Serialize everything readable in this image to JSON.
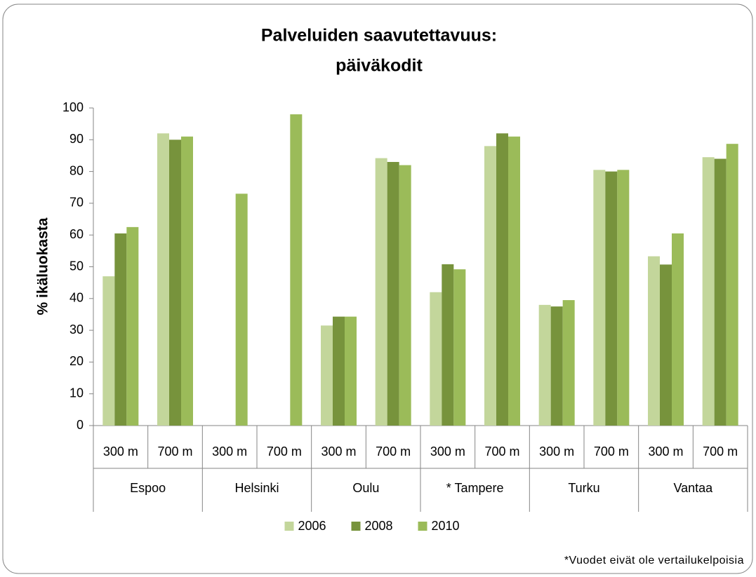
{
  "chart_data": {
    "type": "bar",
    "title": [
      "Palveluiden saavutettavuus:",
      "päiväkodit"
    ],
    "ylabel": "% ikäluokasta",
    "categories": [
      "300 m",
      "700 m",
      "300 m",
      "700 m",
      "300 m",
      "700 m",
      "300 m",
      "700 m",
      "300 m",
      "700 m",
      "300 m",
      "700 m"
    ],
    "groups": [
      "Espoo",
      "Helsinki",
      "Oulu",
      "* Tampere",
      "Turku",
      "Vantaa"
    ],
    "series": [
      {
        "name": "2006",
        "color": "#c3d69b",
        "values": [
          47,
          92,
          null,
          null,
          31.5,
          84.2,
          42,
          88,
          38,
          80.5,
          53.3,
          84.5
        ]
      },
      {
        "name": "2008",
        "color": "#77933c",
        "values": [
          60.5,
          90,
          null,
          null,
          34.3,
          83,
          50.8,
          92,
          37.5,
          80,
          50.7,
          84
        ]
      },
      {
        "name": "2010",
        "color": "#9bbb59",
        "values": [
          62.5,
          91,
          73,
          98,
          34.3,
          82,
          49.2,
          91,
          39.5,
          80.5,
          60.5,
          88.7
        ]
      }
    ],
    "ylim": [
      0,
      100
    ],
    "yticks": [
      0,
      10,
      20,
      30,
      40,
      50,
      60,
      70,
      80,
      90,
      100
    ],
    "legend": "bottom",
    "footnote": "*Vuodet eivät ole vertailukelpoisia"
  }
}
